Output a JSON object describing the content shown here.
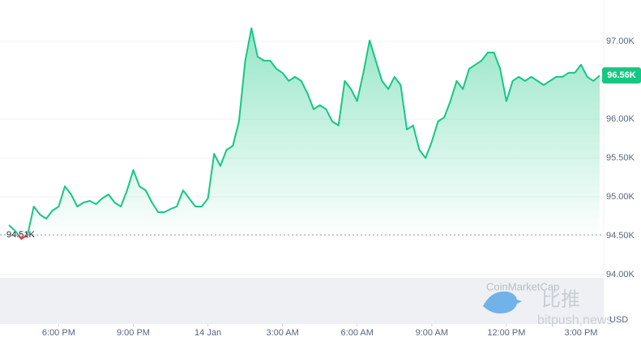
{
  "chart_data": {
    "type": "line",
    "series": [
      {
        "name": null,
        "color": "#16c784",
        "values": [
          94635,
          94562,
          94458,
          94510,
          94875,
          94771,
          94719,
          94823,
          94875,
          95135,
          95031,
          94875,
          94927,
          94948,
          94906,
          94979,
          95031,
          94927,
          94875,
          95083,
          95344,
          95135,
          95083,
          94927,
          94802,
          94802,
          94844,
          94875,
          95083,
          94979,
          94875,
          94875,
          94979,
          95552,
          95396,
          95604,
          95656,
          95969,
          96750,
          97167,
          96802,
          96750,
          96750,
          96646,
          96594,
          96490,
          96542,
          96490,
          96333,
          96125,
          96177,
          96125,
          95969,
          95917,
          96490,
          96385,
          96229,
          96594,
          97010,
          96750,
          96490,
          96385,
          96542,
          96437,
          95865,
          95917,
          95604,
          95500,
          95708,
          95969,
          96021,
          96229,
          96490,
          96385,
          96646,
          96698,
          96750,
          96854,
          96854,
          96646,
          96229,
          96490,
          96542,
          96490,
          96542,
          96490,
          96437,
          96490,
          96542,
          96542,
          96594,
          96594,
          96698,
          96542,
          96490,
          96560
        ]
      }
    ],
    "below_color": "#ea3943",
    "xlim": [
      0,
      95
    ],
    "xticks": [
      {
        "value": 8,
        "label": "6:00 PM"
      },
      {
        "value": 20,
        "label": "9:00 PM"
      },
      {
        "value": 32,
        "label": "14 Jan"
      },
      {
        "value": 44,
        "label": "3:00 AM"
      },
      {
        "value": 56,
        "label": "6:00 AM"
      },
      {
        "value": 68,
        "label": "9:00 AM"
      },
      {
        "value": 80,
        "label": "12:00 PM"
      },
      {
        "value": 92,
        "label": "3:00 PM"
      }
    ],
    "ylim": [
      93365,
      97530
    ],
    "yticks": [
      {
        "value": 94000,
        "label": "94.00K"
      },
      {
        "value": 94500,
        "label": "94.50K"
      },
      {
        "value": 95000,
        "label": "95.00K"
      },
      {
        "value": 95500,
        "label": "95.50K"
      },
      {
        "value": 96000,
        "label": "96.00K"
      },
      {
        "value": 97000,
        "label": "97.00K"
      }
    ],
    "baseline": {
      "value": 94510,
      "label": "94.51K"
    },
    "current_price": {
      "value": 96560,
      "label": "96.56K"
    },
    "currency": "USD",
    "grid": true
  },
  "watermarks": {
    "source": "CoinMarketCap",
    "site": "bitpush.news",
    "brand": "比推"
  }
}
